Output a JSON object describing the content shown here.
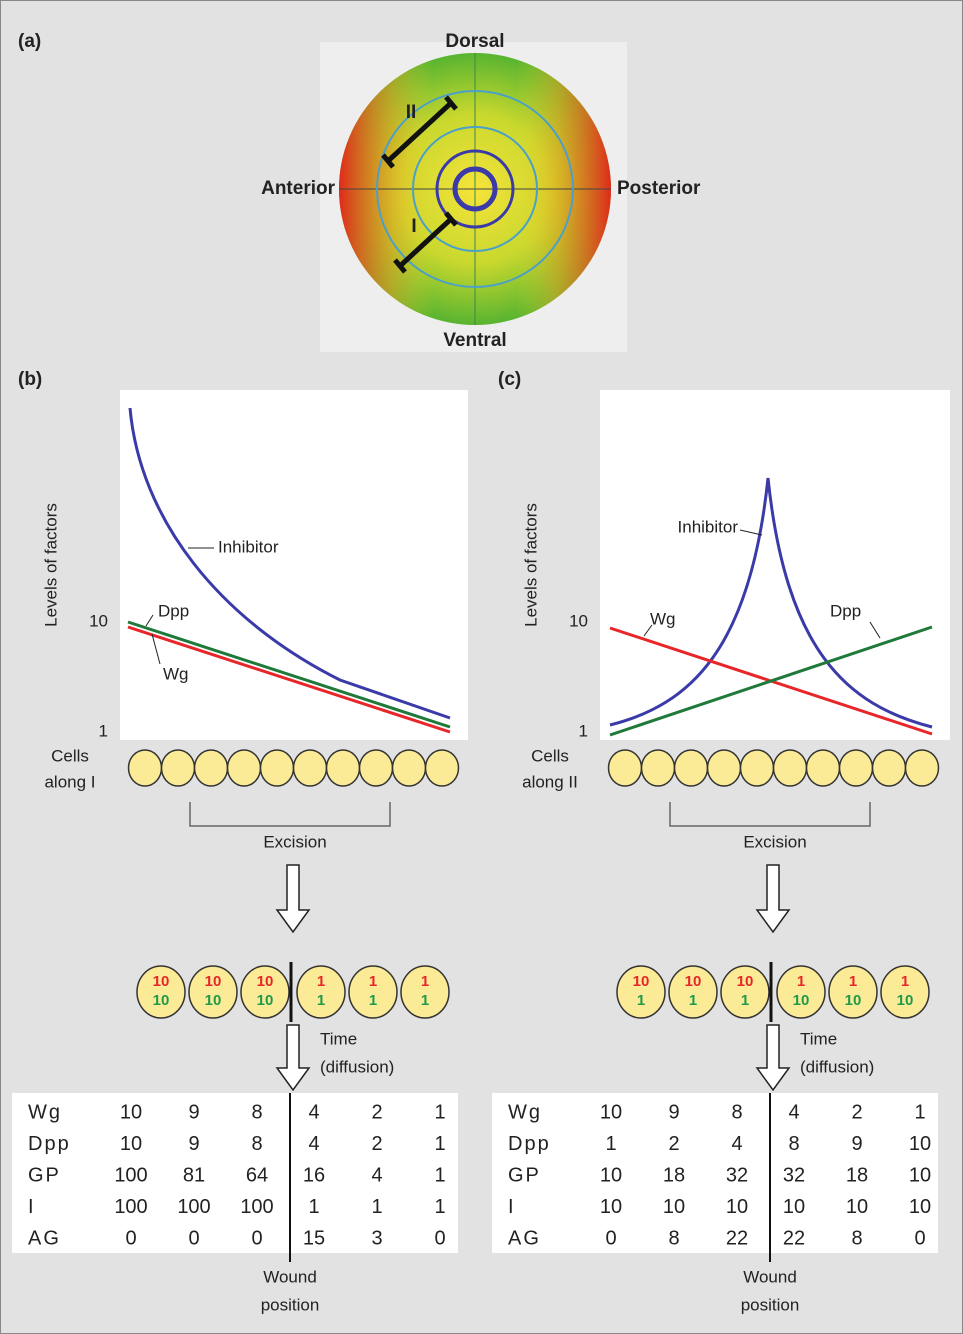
{
  "panel_a": {
    "label": "(a)",
    "dorsal": "Dorsal",
    "ventral": "Ventral",
    "anterior": "Anterior",
    "posterior": "Posterior",
    "line_2": "II",
    "line_1": "I"
  },
  "panel_b": {
    "label": "(b)",
    "y_axis_label": "Levels of factors",
    "yticks": [
      10,
      1
    ],
    "curve_labels": {
      "inhibitor": "Inhibitor",
      "dpp": "Dpp",
      "wg": "Wg"
    },
    "cells_label": [
      "Cells",
      "along I"
    ],
    "excision": "Excision",
    "grafted_cells": {
      "wg": [
        10,
        10,
        10,
        1,
        1,
        1
      ],
      "dpp": [
        10,
        10,
        10,
        1,
        1,
        1
      ]
    },
    "time_label": [
      "Time",
      "(diffusion)"
    ],
    "table": {
      "rows": [
        {
          "name": "Wg",
          "color": "#e8262a",
          "values": [
            10,
            9,
            8,
            4,
            2,
            1
          ]
        },
        {
          "name": "Dpp",
          "color": "#1f9a4a",
          "values": [
            10,
            9,
            8,
            4,
            2,
            1
          ]
        },
        {
          "name": "GP",
          "color": "#222222",
          "values": [
            100,
            81,
            64,
            16,
            4,
            1
          ]
        },
        {
          "name": "I",
          "color": "#3a3aa8",
          "values": [
            100,
            100,
            100,
            1,
            1,
            1
          ]
        },
        {
          "name": "AG",
          "color": "#222222",
          "values": [
            0,
            0,
            0,
            15,
            3,
            0
          ]
        }
      ]
    },
    "wound_label": [
      "Wound",
      "position"
    ]
  },
  "panel_c": {
    "label": "(c)",
    "y_axis_label": "Levels of factors",
    "yticks": [
      10,
      1
    ],
    "curve_labels": {
      "inhibitor": "Inhibitor",
      "dpp": "Dpp",
      "wg": "Wg"
    },
    "cells_label": [
      "Cells",
      "along II"
    ],
    "excision": "Excision",
    "grafted_cells": {
      "wg": [
        10,
        10,
        10,
        1,
        1,
        1
      ],
      "dpp": [
        1,
        1,
        1,
        10,
        10,
        10
      ]
    },
    "time_label": [
      "Time",
      "(diffusion)"
    ],
    "table": {
      "rows": [
        {
          "name": "Wg",
          "color": "#e8262a",
          "values": [
            10,
            9,
            8,
            4,
            2,
            1
          ]
        },
        {
          "name": "Dpp",
          "color": "#1f9a4a",
          "values": [
            1,
            2,
            4,
            8,
            9,
            10
          ]
        },
        {
          "name": "GP",
          "color": "#222222",
          "values": [
            10,
            18,
            32,
            32,
            18,
            10
          ]
        },
        {
          "name": "I",
          "color": "#3a3aa8",
          "values": [
            10,
            10,
            10,
            10,
            10,
            10
          ]
        },
        {
          "name": "AG",
          "color": "#222222",
          "values": [
            0,
            8,
            22,
            22,
            8,
            0
          ]
        }
      ]
    },
    "wound_label": [
      "Wound",
      "position"
    ]
  }
}
